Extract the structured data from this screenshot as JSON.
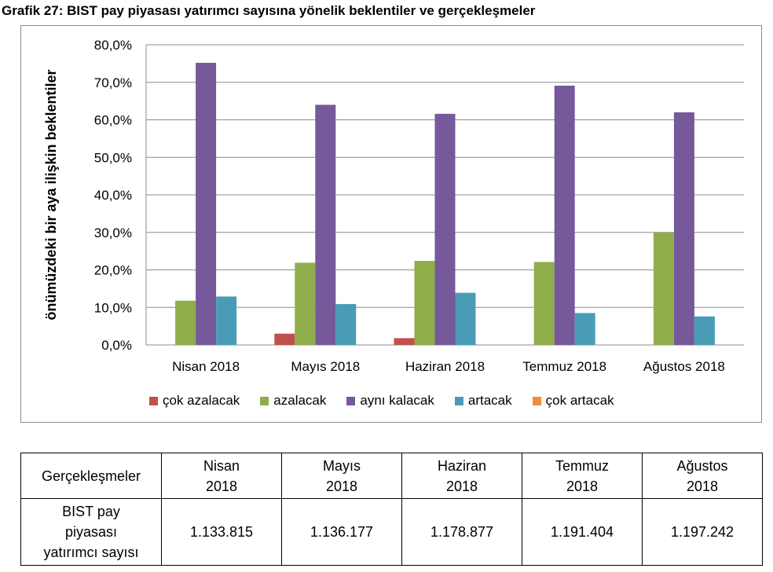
{
  "title": "Grafik 27: BIST pay piyasası yatırımcı sayısına yönelik beklentiler ve gerçekleşmeler",
  "chart_data": {
    "type": "bar",
    "ylabel": "önümüzdeki bir aya ilişkin beklentiler",
    "xlabel": "",
    "ylim": [
      0,
      80
    ],
    "yticks": [
      "0,0%",
      "10,0%",
      "20,0%",
      "30,0%",
      "40,0%",
      "50,0%",
      "60,0%",
      "70,0%",
      "80,0%"
    ],
    "categories": [
      "Nisan 2018",
      "Mayıs 2018",
      "Haziran 2018",
      "Temmuz 2018",
      "Ağustos 2018"
    ],
    "grid": true,
    "legend_position": "bottom",
    "series": [
      {
        "name": "çok azalacak",
        "color": "#c0504d",
        "values": [
          0,
          3.0,
          1.8,
          0,
          0
        ]
      },
      {
        "name": "azalacak",
        "color": "#8fae4b",
        "values": [
          11.8,
          21.9,
          22.4,
          22.1,
          30.0
        ]
      },
      {
        "name": "aynı kalacak",
        "color": "#76599b",
        "values": [
          75.2,
          64.0,
          61.6,
          69.1,
          62.0
        ]
      },
      {
        "name": "artacak",
        "color": "#4a9cb6",
        "values": [
          12.9,
          10.9,
          13.9,
          8.5,
          7.6
        ]
      },
      {
        "name": "çok artacak",
        "color": "#f08c3c",
        "values": [
          0,
          0,
          0,
          0,
          0
        ]
      }
    ]
  },
  "table": {
    "header": [
      "Gerçekleşmeler",
      "Nisan\n2018",
      "Mayıs\n2018",
      "Haziran\n2018",
      "Temmuz\n2018",
      "Ağustos\n2018"
    ],
    "row_label": "BIST pay\npiyasası\nyatırımcı sayısı",
    "values": [
      "1.133.815",
      "1.136.177",
      "1.178.877",
      "1.191.404",
      "1.197.242"
    ]
  }
}
